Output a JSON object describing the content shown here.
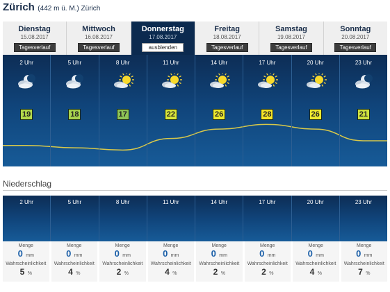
{
  "location": {
    "city": "Zürich",
    "details": "(442 m ü. M.) Zürich"
  },
  "days": [
    {
      "name": "Dienstag",
      "date": "15.08.2017",
      "button": "Tagesverlauf",
      "active": false
    },
    {
      "name": "Mittwoch",
      "date": "16.08.2017",
      "button": "Tagesverlauf",
      "active": false
    },
    {
      "name": "Donnerstag",
      "date": "17.08.2017",
      "button": "ausblenden",
      "active": true
    },
    {
      "name": "Freitag",
      "date": "18.08.2017",
      "button": "Tagesverlauf",
      "active": false
    },
    {
      "name": "Samstag",
      "date": "19.08.2017",
      "button": "Tagesverlauf",
      "active": false
    },
    {
      "name": "Sonntag",
      "date": "20.08.2017",
      "button": "Tagesverlauf",
      "active": false
    }
  ],
  "hours": [
    {
      "time": "2 Uhr",
      "icon": "moon-cloud-icon",
      "temp": "19",
      "temp_color": "#b3d94a"
    },
    {
      "time": "5 Uhr",
      "icon": "moon-cloud-icon",
      "temp": "18",
      "temp_color": "#a8d24e"
    },
    {
      "time": "8 Uhr",
      "icon": "sun-cloud-icon",
      "temp": "17",
      "temp_color": "#8ec456"
    },
    {
      "time": "11 Uhr",
      "icon": "sun-cloud-icon",
      "temp": "22",
      "temp_color": "#d9e63a"
    },
    {
      "time": "14 Uhr",
      "icon": "sun-cloud-icon",
      "temp": "26",
      "temp_color": "#eeea2e"
    },
    {
      "time": "17 Uhr",
      "icon": "sun-cloud-icon",
      "temp": "28",
      "temp_color": "#f6e628"
    },
    {
      "time": "20 Uhr",
      "icon": "sun-cloud-icon",
      "temp": "26",
      "temp_color": "#eeea2e"
    },
    {
      "time": "23 Uhr",
      "icon": "moon-cloud-icon",
      "temp": "21",
      "temp_color": "#cfe13e"
    }
  ],
  "precipitation": {
    "title": "Niederschlag",
    "amount_label": "Menge",
    "probability_label": "Wahrscheinlichkeit",
    "amount_unit": "mm",
    "probability_unit": "%",
    "hours": [
      {
        "time": "2 Uhr",
        "amount": "0",
        "probability": "5"
      },
      {
        "time": "5 Uhr",
        "amount": "0",
        "probability": "4"
      },
      {
        "time": "8 Uhr",
        "amount": "0",
        "probability": "2"
      },
      {
        "time": "11 Uhr",
        "amount": "0",
        "probability": "4"
      },
      {
        "time": "14 Uhr",
        "amount": "0",
        "probability": "2"
      },
      {
        "time": "17 Uhr",
        "amount": "0",
        "probability": "2"
      },
      {
        "time": "20 Uhr",
        "amount": "0",
        "probability": "4"
      },
      {
        "time": "23 Uhr",
        "amount": "0",
        "probability": "7"
      }
    ]
  },
  "colors": {
    "panel_top": "#0d2d55",
    "panel_bottom": "#175b98",
    "active_tab": "#0b2a4f",
    "curve": "#d8c84a",
    "precip_value": "#1b5fa8"
  }
}
